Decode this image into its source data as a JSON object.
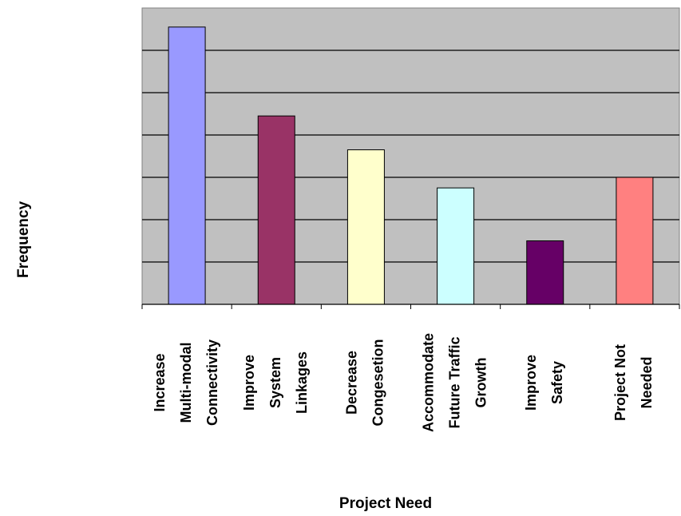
{
  "chart_data": {
    "type": "bar",
    "title": "",
    "xlabel": "Project Need",
    "ylabel": "Frequency",
    "ylim": [
      0,
      7
    ],
    "grid": true,
    "legend": "none",
    "categories": [
      [
        "Increase",
        "Multi-modal",
        "Connectivity"
      ],
      [
        "Improve",
        "System",
        "Linkages"
      ],
      [
        "Decrease",
        "Congesetion"
      ],
      [
        "Accommodate",
        "Future Traffic",
        "Growth"
      ],
      [
        "Improve",
        "Safety"
      ],
      [
        "Project Not",
        "Needed"
      ]
    ],
    "values": [
      6.55,
      4.45,
      3.65,
      2.75,
      1.5,
      3.0
    ],
    "colors": [
      "#9999ff",
      "#993366",
      "#ffffcc",
      "#ccffff",
      "#660066",
      "#ff8080"
    ],
    "plot_background": "#c0c0c0"
  }
}
